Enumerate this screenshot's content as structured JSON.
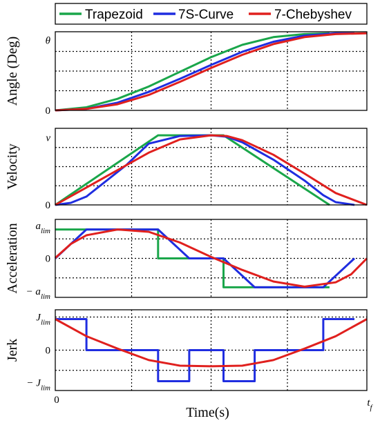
{
  "chart_data": {
    "type": "line",
    "legend": {
      "placement": "top",
      "entries": [
        {
          "name": "Trapezoid",
          "color": "#1aa64a"
        },
        {
          "name": "7S-Curve",
          "color": "#1f2de0"
        },
        {
          "name": "7-Chebyshev",
          "color": "#e0201e"
        }
      ]
    },
    "xlabel": "Time(s)",
    "x_ticks": [
      "0",
      "t_f"
    ],
    "xlim": [
      0,
      1
    ],
    "grid": true,
    "panels": [
      {
        "ylabel": "Angle (Deg)",
        "y_ticks": [
          "θ",
          "0"
        ],
        "ylim": [
          0,
          1.02
        ],
        "series": [
          {
            "name": "Trapezoid",
            "x": [
              0,
              0.1,
              0.2,
              0.3,
              0.4,
              0.5,
              0.6,
              0.7,
              0.8,
              0.88
            ],
            "y": [
              0,
              0.04,
              0.15,
              0.31,
              0.5,
              0.69,
              0.85,
              0.95,
              0.99,
              1.0
            ]
          },
          {
            "name": "7S-Curve",
            "x": [
              0,
              0.1,
              0.2,
              0.3,
              0.4,
              0.5,
              0.6,
              0.7,
              0.8,
              0.9,
              0.96
            ],
            "y": [
              0,
              0.02,
              0.1,
              0.24,
              0.41,
              0.59,
              0.76,
              0.89,
              0.97,
              1.0,
              1.0
            ]
          },
          {
            "name": "7-Chebyshev",
            "x": [
              0,
              0.1,
              0.2,
              0.3,
              0.4,
              0.5,
              0.6,
              0.7,
              0.8,
              0.9,
              1.0
            ],
            "y": [
              0,
              0.02,
              0.08,
              0.2,
              0.37,
              0.55,
              0.72,
              0.86,
              0.95,
              0.99,
              1.0
            ]
          }
        ]
      },
      {
        "ylabel": "Velocity",
        "y_ticks": [
          "v",
          "0"
        ],
        "ylim": [
          0,
          1.1
        ],
        "series": [
          {
            "name": "Trapezoid",
            "x": [
              0,
              0.33,
              0.54,
              0.88
            ],
            "y": [
              0,
              1,
              1,
              0
            ]
          },
          {
            "name": "7S-Curve",
            "x": [
              0,
              0.05,
              0.1,
              0.23,
              0.3,
              0.4,
              0.5,
              0.55,
              0.6,
              0.7,
              0.8,
              0.86,
              0.9,
              0.96
            ],
            "y": [
              0,
              0.03,
              0.12,
              0.58,
              0.88,
              0.99,
              1.0,
              0.98,
              0.9,
              0.65,
              0.35,
              0.14,
              0.04,
              0
            ]
          },
          {
            "name": "7-Chebyshev",
            "x": [
              0,
              0.1,
              0.2,
              0.3,
              0.4,
              0.5,
              0.55,
              0.6,
              0.7,
              0.8,
              0.9,
              1.0
            ],
            "y": [
              0,
              0.25,
              0.5,
              0.75,
              0.94,
              1.0,
              0.99,
              0.93,
              0.72,
              0.45,
              0.17,
              0
            ]
          }
        ]
      },
      {
        "ylabel": "Acceleration",
        "y_ticks": [
          "a_lim",
          "0",
          "− a_lim"
        ],
        "ylim": [
          -1.35,
          1.35
        ],
        "series": [
          {
            "name": "Trapezoid",
            "x": [
              0,
              0.33,
              0.33,
              0.54,
              0.54,
              0.88
            ],
            "y": [
              1,
              1,
              0,
              0,
              -1,
              -1
            ]
          },
          {
            "name": "7S-Curve",
            "x": [
              0,
              0.1,
              0.33,
              0.43,
              0.54,
              0.64,
              0.86,
              0.96
            ],
            "y": [
              0,
              1,
              1,
              0,
              0,
              -1,
              -1,
              0
            ]
          },
          {
            "name": "7-Chebyshev",
            "x": [
              0,
              0.05,
              0.1,
              0.2,
              0.3,
              0.4,
              0.5,
              0.6,
              0.7,
              0.8,
              0.9,
              0.95,
              1.0
            ],
            "y": [
              0.02,
              0.5,
              0.8,
              1.0,
              0.92,
              0.55,
              0.05,
              -0.4,
              -0.8,
              -0.98,
              -0.83,
              -0.55,
              0
            ]
          }
        ]
      },
      {
        "ylabel": "Jerk",
        "y_ticks": [
          "J_lim",
          "0",
          "− J_lim"
        ],
        "ylim": [
          -1.3,
          1.3
        ],
        "series": [
          {
            "name": "7S-Curve",
            "x": [
              0,
              0.1,
              0.1,
              0.33,
              0.33,
              0.43,
              0.43,
              0.54,
              0.54,
              0.64,
              0.64,
              0.86,
              0.86,
              0.96
            ],
            "y": [
              1,
              1,
              0,
              0,
              -1,
              -1,
              0,
              0,
              -1,
              -1,
              0,
              0,
              1,
              1
            ]
          },
          {
            "name": "7-Chebyshev",
            "x": [
              0,
              0.1,
              0.2,
              0.3,
              0.4,
              0.5,
              0.6,
              0.7,
              0.8,
              0.9,
              1.0
            ],
            "y": [
              1,
              0.45,
              0.05,
              -0.32,
              -0.5,
              -0.52,
              -0.5,
              -0.32,
              0.05,
              0.45,
              1
            ]
          }
        ]
      }
    ]
  }
}
